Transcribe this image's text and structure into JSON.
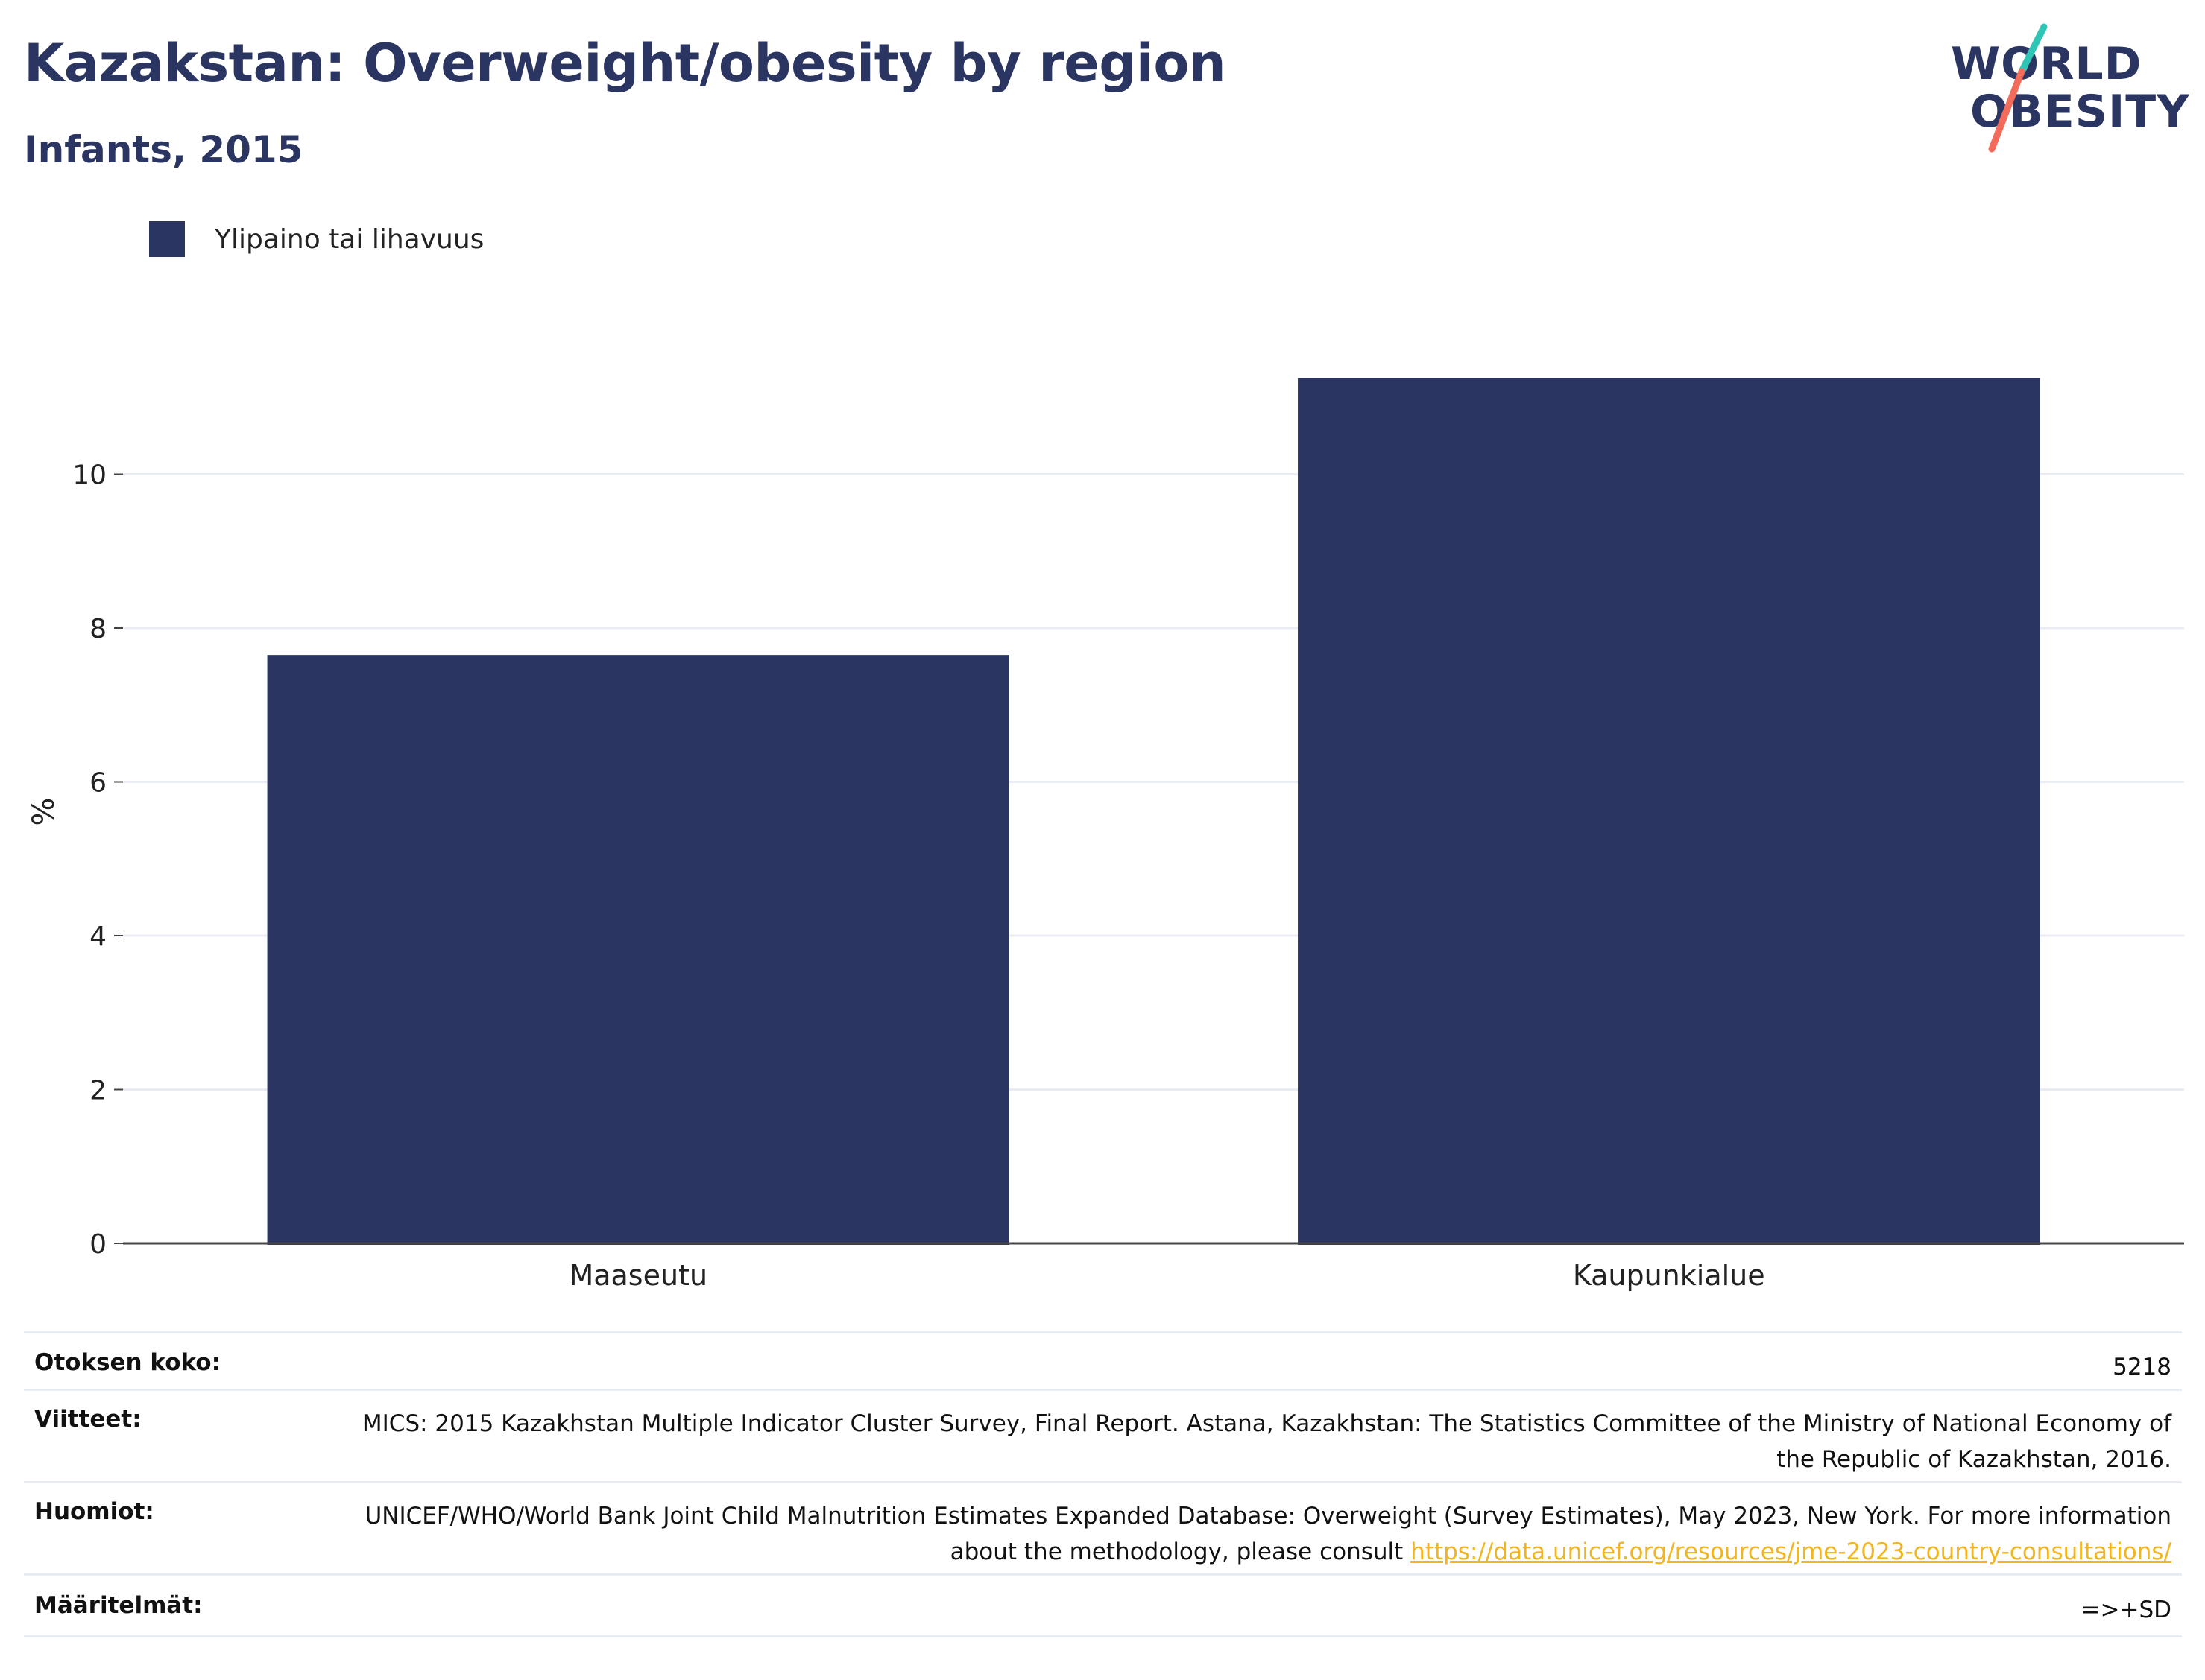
{
  "header": {
    "title": "Kazakstan: Overweight/obesity by region",
    "subtitle": "Infants, 2015"
  },
  "logo": {
    "line1": "WORLD",
    "line2": "OBESITY",
    "slash_colors": [
      "#2ec4b6",
      "#f26b5b"
    ]
  },
  "colors": {
    "bar": "#2a3561",
    "text_primary": "#2a3561",
    "link": "#f2b51f",
    "grid": "#e9ecf3",
    "axis": "#444444"
  },
  "chart_data": {
    "type": "bar",
    "categories": [
      "Maaseutu",
      "Kaupunkialue"
    ],
    "series": [
      {
        "name": "Ylipaino tai lihavuus",
        "values": [
          7.65,
          11.25
        ]
      }
    ],
    "xlabel": "",
    "ylabel": "%",
    "ylim": [
      0,
      12
    ],
    "yticks": [
      0,
      2,
      4,
      6,
      8,
      10
    ],
    "grid": true,
    "legend_position": "top-left"
  },
  "info": {
    "sample_size_label": "Otoksen koko:",
    "sample_size_value": "5218",
    "references_label": "Viitteet:",
    "references_value": "MICS: 2015 Kazakhstan Multiple Indicator Cluster Survey, Final Report. Astana, Kazakhstan: The Statistics Committee of the Ministry of National Economy of the Republic of Kazakhstan, 2016.",
    "notes_label": "Huomiot:",
    "notes_value_text": "UNICEF/WHO/World Bank Joint Child Malnutrition Estimates Expanded Database: Overweight (Survey Estimates), May 2023, New York. For more information about the methodology, please consult ",
    "notes_link": "https://data.unicef.org/resources/jme-2023-country-consultations/",
    "definitions_label": "Määritelmät:",
    "definitions_value": "=>+SD"
  }
}
